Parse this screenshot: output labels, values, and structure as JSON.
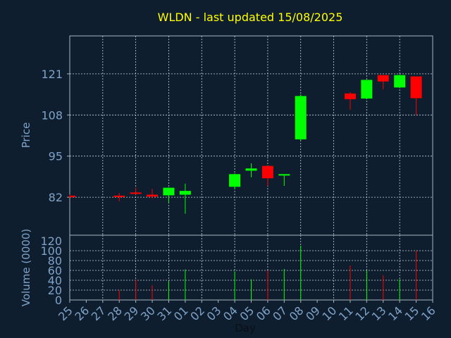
{
  "chart_data": {
    "type": "candlestick",
    "title": "WLDN - last updated 15/08/2025",
    "price_axis": {
      "label": "Price",
      "ylim": [
        70,
        133
      ],
      "ticks": [
        82,
        95,
        108,
        121
      ]
    },
    "volume_axis": {
      "label": "Volume (0000)",
      "ylim": [
        0,
        120
      ],
      "ticks": [
        0,
        20,
        40,
        60,
        80,
        100,
        120
      ]
    },
    "xlabel": "Day",
    "x_ticks": [
      "25",
      "26",
      "27",
      "28",
      "29",
      "30",
      "31",
      "01",
      "02",
      "03",
      "04",
      "05",
      "06",
      "07",
      "08",
      "09",
      "10",
      "11",
      "12",
      "13",
      "14",
      "15",
      "16"
    ],
    "grid": true,
    "colors": {
      "background": "#0f1e2e",
      "up": "#00ff00",
      "down": "#ff0000",
      "title": "#ffff00",
      "axis_text": "#7ea3c8",
      "frame": "#aab4c0",
      "grid": "#c8d0d8"
    },
    "candles": [
      {
        "day": "25",
        "open": 82.5,
        "high": 82.8,
        "low": 81.8,
        "close": 82.0,
        "volume": 0
      },
      {
        "day": "28",
        "open": 82.5,
        "high": 83.3,
        "low": 80.7,
        "close": 82.2,
        "volume": 20
      },
      {
        "day": "29",
        "open": 83.5,
        "high": 85.0,
        "low": 82.8,
        "close": 83.1,
        "volume": 41
      },
      {
        "day": "30",
        "open": 82.8,
        "high": 84.6,
        "low": 81.7,
        "close": 82.2,
        "volume": 30
      },
      {
        "day": "31",
        "open": 82.6,
        "high": 85.1,
        "low": 80.2,
        "close": 85.0,
        "volume": 38
      },
      {
        "day": "01",
        "open": 82.8,
        "high": 86.3,
        "low": 76.8,
        "close": 84.0,
        "volume": 62
      },
      {
        "day": "04",
        "open": 85.3,
        "high": 89.5,
        "low": 84.5,
        "close": 89.3,
        "volume": 58
      },
      {
        "day": "05",
        "open": 90.4,
        "high": 92.7,
        "low": 88.3,
        "close": 91.1,
        "volume": 42
      },
      {
        "day": "06",
        "open": 91.9,
        "high": 91.9,
        "low": 85.6,
        "close": 88.0,
        "volume": 60
      },
      {
        "day": "07",
        "open": 89.0,
        "high": 89.3,
        "low": 85.6,
        "close": 89.3,
        "volume": 63
      },
      {
        "day": "08",
        "open": 100.3,
        "high": 114.5,
        "low": 99.8,
        "close": 114.0,
        "volume": 110
      },
      {
        "day": "11",
        "open": 114.8,
        "high": 115.2,
        "low": 109.7,
        "close": 113.0,
        "volume": 70
      },
      {
        "day": "12",
        "open": 113.2,
        "high": 119.1,
        "low": 113.0,
        "close": 119.1,
        "volume": 60
      },
      {
        "day": "13",
        "open": 120.6,
        "high": 120.6,
        "low": 116.1,
        "close": 118.6,
        "volume": 50
      },
      {
        "day": "14",
        "open": 116.7,
        "high": 120.8,
        "low": 116.5,
        "close": 120.6,
        "volume": 42
      },
      {
        "day": "15",
        "open": 120.2,
        "high": 120.2,
        "low": 108.0,
        "close": 113.3,
        "volume": 100
      }
    ]
  }
}
